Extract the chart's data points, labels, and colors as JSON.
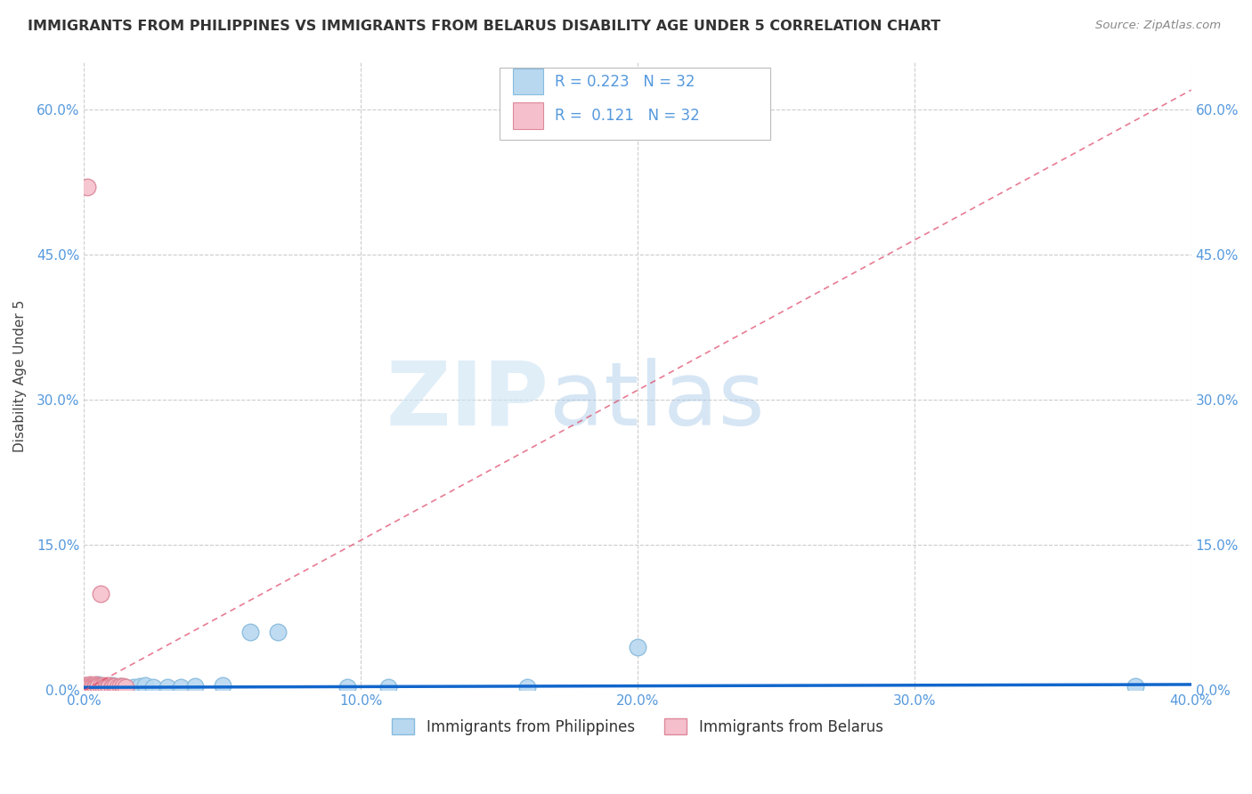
{
  "title": "IMMIGRANTS FROM PHILIPPINES VS IMMIGRANTS FROM BELARUS DISABILITY AGE UNDER 5 CORRELATION CHART",
  "source": "Source: ZipAtlas.com",
  "ylabel": "Disability Age Under 5",
  "xlim": [
    0.0,
    0.4
  ],
  "ylim": [
    0.0,
    0.65
  ],
  "xticks": [
    0.0,
    0.1,
    0.2,
    0.3,
    0.4
  ],
  "xtick_labels": [
    "0.0%",
    "10.0%",
    "20.0%",
    "30.0%",
    "40.0%"
  ],
  "yticks": [
    0.0,
    0.15,
    0.3,
    0.45,
    0.6
  ],
  "ytick_labels": [
    "0.0%",
    "15.0%",
    "30.0%",
    "45.0%",
    "60.0%"
  ],
  "tick_color": "#5599dd",
  "grid_color": "#cccccc",
  "background_color": "#ffffff",
  "philippines_color": "#b8d8f0",
  "philippines_edge_color": "#88bbdd",
  "belarus_color": "#f5c0cc",
  "belarus_edge_color": "#dd8899",
  "philippines_R": 0.223,
  "philippines_N": 32,
  "belarus_R": 0.121,
  "belarus_N": 32,
  "philippines_line_color": "#1166cc",
  "belarus_line_color": "#dd4466",
  "watermark_zip": "ZIP",
  "watermark_atlas": "atlas",
  "legend_label_philippines": "Immigrants from Philippines",
  "legend_label_belarus": "Immigrants from Belarus",
  "philippines_x": [
    0.001,
    0.002,
    0.003,
    0.003,
    0.004,
    0.005,
    0.005,
    0.006,
    0.006,
    0.007,
    0.008,
    0.009,
    0.01,
    0.011,
    0.012,
    0.013,
    0.015,
    0.018,
    0.02,
    0.022,
    0.025,
    0.03,
    0.035,
    0.04,
    0.05,
    0.06,
    0.07,
    0.095,
    0.11,
    0.16,
    0.2,
    0.38
  ],
  "philippines_y": [
    0.005,
    0.004,
    0.003,
    0.005,
    0.003,
    0.004,
    0.006,
    0.003,
    0.004,
    0.003,
    0.004,
    0.003,
    0.005,
    0.004,
    0.003,
    0.004,
    0.003,
    0.003,
    0.004,
    0.005,
    0.003,
    0.003,
    0.003,
    0.004,
    0.005,
    0.06,
    0.06,
    0.003,
    0.003,
    0.003,
    0.045,
    0.004
  ],
  "belarus_x": [
    0.0005,
    0.001,
    0.001,
    0.002,
    0.002,
    0.002,
    0.003,
    0.003,
    0.003,
    0.004,
    0.004,
    0.004,
    0.005,
    0.005,
    0.005,
    0.006,
    0.006,
    0.007,
    0.007,
    0.008,
    0.008,
    0.009,
    0.009,
    0.01,
    0.01,
    0.011,
    0.011,
    0.012,
    0.013,
    0.014,
    0.014,
    0.015
  ],
  "belarus_y": [
    0.005,
    0.52,
    0.004,
    0.006,
    0.003,
    0.004,
    0.005,
    0.003,
    0.004,
    0.006,
    0.004,
    0.003,
    0.005,
    0.003,
    0.004,
    0.1,
    0.004,
    0.005,
    0.003,
    0.004,
    0.003,
    0.005,
    0.003,
    0.004,
    0.003,
    0.003,
    0.004,
    0.003,
    0.004,
    0.003,
    0.004,
    0.003
  ]
}
